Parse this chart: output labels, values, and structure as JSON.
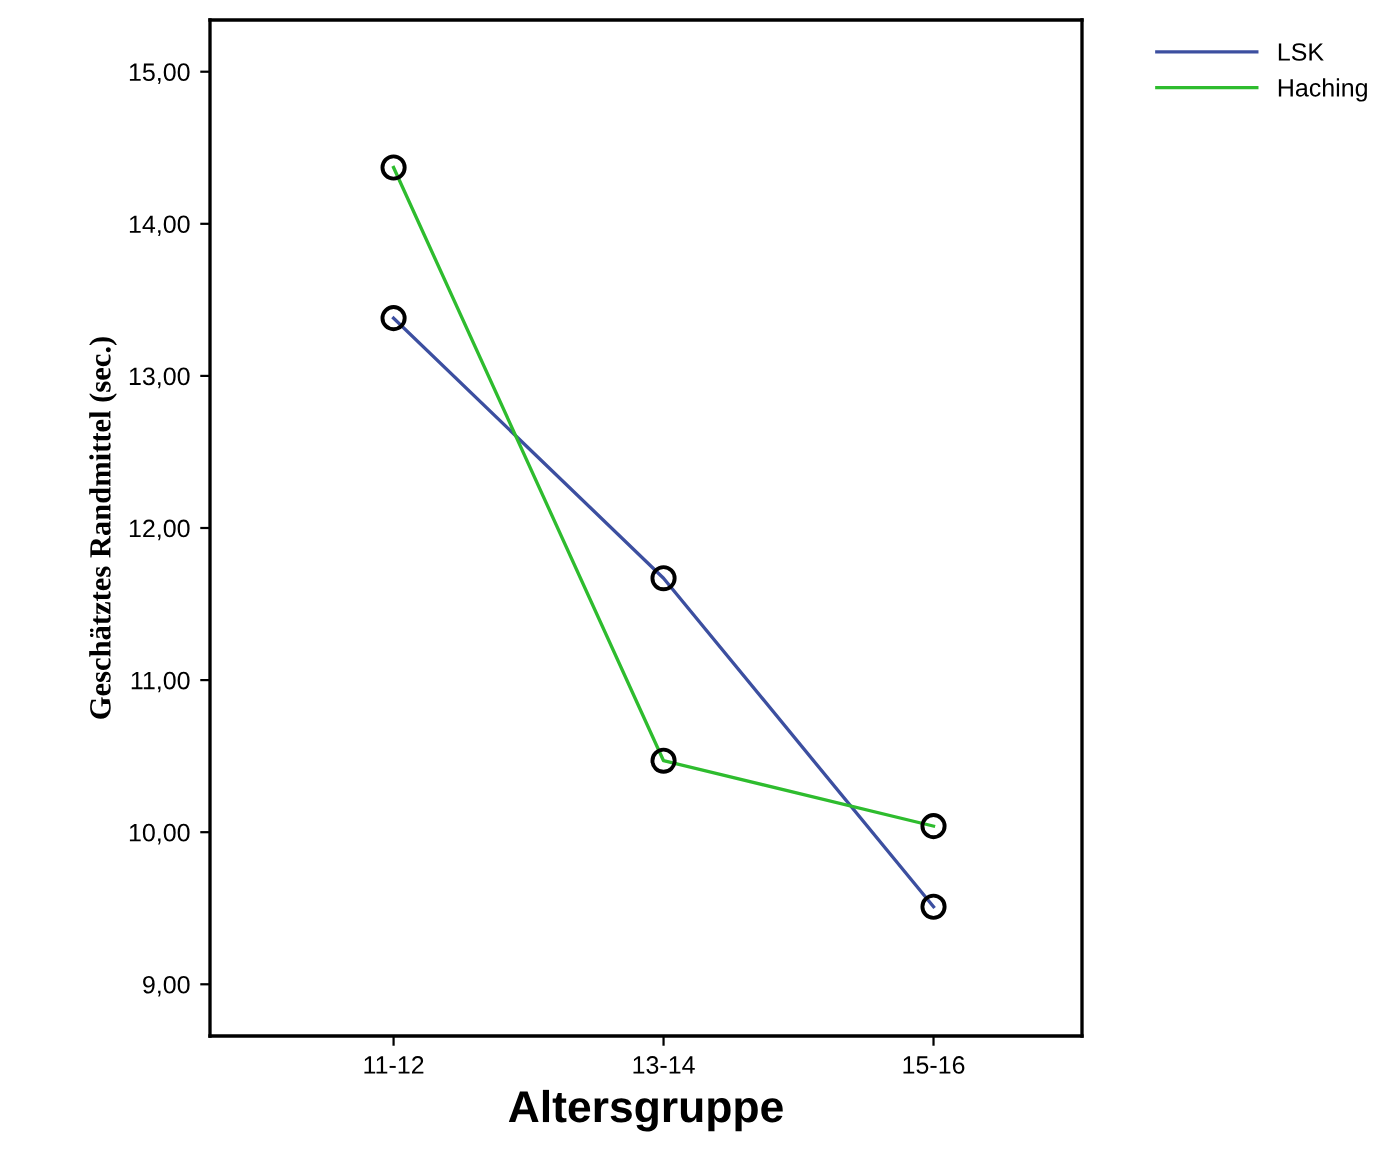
{
  "chart_data": {
    "type": "line",
    "xlabel": "Altersgruppe",
    "ylabel": "Geschätztes Randmittel (sec.)",
    "categories": [
      "11-12",
      "13-14",
      "15-16"
    ],
    "series": [
      {
        "name": "LSK",
        "color": "#3c4fa0",
        "values": [
          13.38,
          11.67,
          9.51
        ]
      },
      {
        "name": "Haching",
        "color": "#2ebc2e",
        "values": [
          14.37,
          10.47,
          10.04
        ]
      }
    ],
    "ylim": [
      8.66,
      15.34
    ],
    "yticks": [
      {
        "value": 9,
        "label": "9,00"
      },
      {
        "value": 10,
        "label": "10,00"
      },
      {
        "value": 11,
        "label": "11,00"
      },
      {
        "value": 12,
        "label": "12,00"
      },
      {
        "value": 13,
        "label": "13,00"
      },
      {
        "value": 14,
        "label": "14,00"
      },
      {
        "value": 15,
        "label": "15,00"
      }
    ],
    "marker": "circle",
    "line_style": "solid",
    "legend": "top right",
    "grid": false
  }
}
